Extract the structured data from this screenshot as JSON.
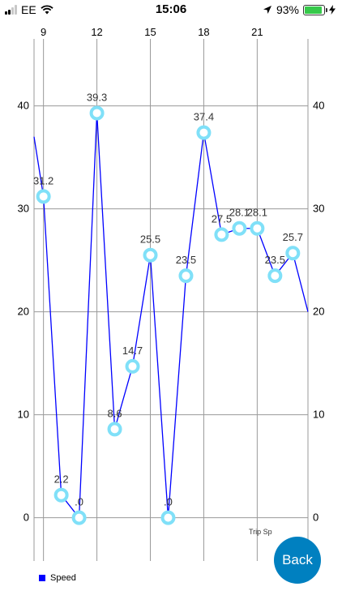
{
  "status_bar": {
    "carrier": "EE",
    "time": "15:06",
    "battery_percent_label": "93%",
    "battery_level": 0.93,
    "icons": [
      "signal-icon",
      "wifi-icon",
      "location-arrow-icon",
      "battery-icon",
      "charging-bolt-icon"
    ]
  },
  "chart_data": {
    "type": "line",
    "x": [
      9,
      10,
      11,
      12,
      13,
      14,
      15,
      16,
      17,
      18,
      19,
      20,
      21,
      22,
      23
    ],
    "series": [
      {
        "name": "Speed",
        "values": [
          31.2,
          2.2,
          0,
          39.3,
          8.6,
          14.7,
          25.5,
          0,
          23.5,
          37.4,
          27.5,
          28.1,
          28.1,
          23.5,
          25.7
        ],
        "labels": [
          "31.2",
          "2.2",
          ".0",
          "39.3",
          "8.6",
          "14.7",
          "25.5",
          ".0",
          "23.5",
          "37.4",
          "27.5",
          "28.1",
          "28.1",
          "23.5",
          "25.7"
        ],
        "line_color": "#0000ff",
        "marker_color": "#80e0f8",
        "line_start_value": 37,
        "line_end_value": 20
      }
    ],
    "x_ticks": [
      {
        "value": 9,
        "label": "9"
      },
      {
        "value": 12,
        "label": "12"
      },
      {
        "value": 15,
        "label": "15"
      },
      {
        "value": 18,
        "label": "18"
      },
      {
        "value": 21,
        "label": "21"
      }
    ],
    "y_ticks": [
      {
        "value": 0,
        "label": "0"
      },
      {
        "value": 10,
        "label": "10"
      },
      {
        "value": 20,
        "label": "20"
      },
      {
        "value": 30,
        "label": "30"
      },
      {
        "value": 40,
        "label": "40"
      }
    ],
    "xlim": [
      8.47,
      23.85
    ],
    "ylim": [
      -4.2,
      46.5
    ],
    "x_axis_position": "top",
    "y_axis_position": "both",
    "grid": true,
    "description": "Trip Sp",
    "legend_position": "bottom-left"
  },
  "legend": {
    "label": "Speed",
    "color": "#0000ff"
  },
  "back_button": {
    "label": "Back",
    "color": "#0080c0"
  }
}
